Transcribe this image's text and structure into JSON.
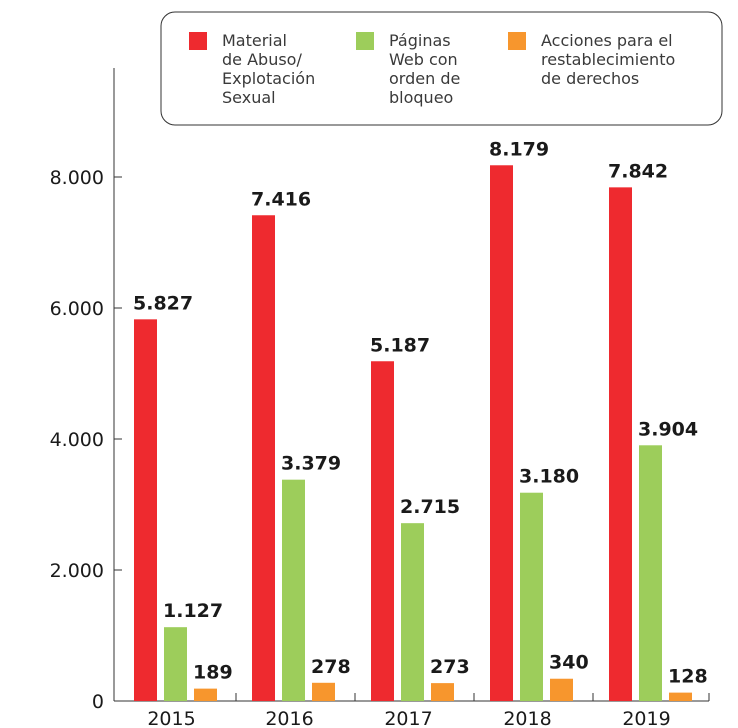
{
  "chart_data": {
    "type": "bar",
    "categories": [
      "2015",
      "2016",
      "2017",
      "2018",
      "2019"
    ],
    "series": [
      {
        "name": [
          "Material",
          "de Abuso/",
          "Explotación",
          "Sexual"
        ],
        "color": "#ee2a2f",
        "values": [
          5827,
          7416,
          5187,
          8179,
          7842
        ],
        "labels": [
          "5.827",
          "7.416",
          "5.187",
          "8.179",
          "7.842"
        ]
      },
      {
        "name": [
          "Páginas",
          "Web con",
          "orden de",
          "bloqueo"
        ],
        "color": "#9dcd5b",
        "values": [
          1127,
          3379,
          2715,
          3180,
          3904
        ],
        "labels": [
          "1.127",
          "3.379",
          "2.715",
          "3.180",
          "3.904"
        ]
      },
      {
        "name": [
          "Acciones para el",
          "restablecimiento",
          "de derechos"
        ],
        "color": "#f7962d",
        "values": [
          189,
          278,
          273,
          340,
          128
        ],
        "labels": [
          "189",
          "278",
          "273",
          "340",
          "128"
        ]
      }
    ],
    "yticks": [
      0,
      2000,
      4000,
      6000,
      8000
    ],
    "ytick_labels": [
      "0",
      "2.000",
      "4.000",
      "6.000",
      "8.000"
    ],
    "ylim": [
      0,
      9500
    ],
    "legend": "top",
    "grid": false
  }
}
